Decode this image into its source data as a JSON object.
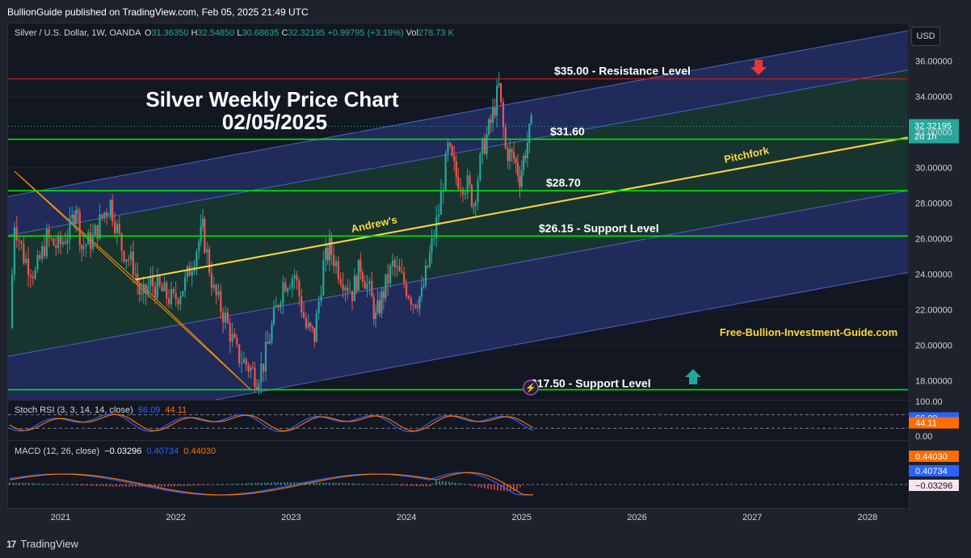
{
  "header": {
    "publisher_line": "BullionGuide published on TradingView.com, Feb 05, 2025 21:49 UTC"
  },
  "legend": {
    "symbol": "Silver / U.S. Dollar, 1W, OANDA",
    "o_label": "O",
    "o_value": "31.36350",
    "h_label": "H",
    "h_value": "32.54850",
    "l_label": "L",
    "l_value": "30.68635",
    "c_label": "C",
    "c_value": "32.32195",
    "change": "+0.99795 (+3.19%)",
    "vol_label": "Vol",
    "vol_value": "278.73 K"
  },
  "currency_button": "USD",
  "footer": {
    "brand": "TradingView",
    "logo": "17"
  },
  "overlays": {
    "title_line1": "Silver Weekly Price Chart",
    "title_line2": "02/05/2025",
    "website": "Free-Bullion-Investment-Guide.com",
    "pitchfork_label": "Pitchfork",
    "andrews_label": "Andrew's"
  },
  "colors": {
    "bull": "#26a69a",
    "bear": "#ef5350",
    "level_line": "#00e600",
    "resistance_line": "#b22222",
    "pitchfork_median": "#ffd740",
    "channel_blue": "#2b3d8a",
    "channel_green": "#1e4d3a",
    "stoch_k": "#2962ff",
    "stoch_d": "#ff6d00",
    "macd": "#2962ff",
    "signal": "#ff6d00"
  },
  "chart_data": {
    "type": "candlestick",
    "title": "Silver Weekly Price Chart",
    "subtitle": "02/05/2025",
    "x_ticks": [
      "2021",
      "2022",
      "2023",
      "2024",
      "2025",
      "2026",
      "2027",
      "2028"
    ],
    "y_ticks": [
      "36.00000",
      "34.00000",
      "32.00000",
      "30.00000",
      "28.00000",
      "26.00000",
      "24.00000",
      "22.00000",
      "20.00000",
      "18.00000"
    ],
    "ylim": [
      16.5,
      37.5
    ],
    "last_price_label": "32.32195",
    "last_price_value": 32.32195,
    "countdown": "2d 1h",
    "price_path": [
      {
        "x": 2020.58,
        "y": 21.0
      },
      {
        "x": 2020.62,
        "y": 27.0
      },
      {
        "x": 2020.7,
        "y": 25.0
      },
      {
        "x": 2020.8,
        "y": 24.0
      },
      {
        "x": 2020.9,
        "y": 26.0
      },
      {
        "x": 2021.0,
        "y": 25.5
      },
      {
        "x": 2021.1,
        "y": 26.5
      },
      {
        "x": 2021.15,
        "y": 28.0
      },
      {
        "x": 2021.2,
        "y": 25.5
      },
      {
        "x": 2021.3,
        "y": 26.0
      },
      {
        "x": 2021.4,
        "y": 27.5
      },
      {
        "x": 2021.45,
        "y": 28.0
      },
      {
        "x": 2021.55,
        "y": 25.5
      },
      {
        "x": 2021.65,
        "y": 24.5
      },
      {
        "x": 2021.72,
        "y": 22.5
      },
      {
        "x": 2021.8,
        "y": 23.5
      },
      {
        "x": 2021.9,
        "y": 23.0
      },
      {
        "x": 2022.0,
        "y": 22.5
      },
      {
        "x": 2022.1,
        "y": 23.5
      },
      {
        "x": 2022.2,
        "y": 25.5
      },
      {
        "x": 2022.25,
        "y": 26.5
      },
      {
        "x": 2022.35,
        "y": 23.0
      },
      {
        "x": 2022.45,
        "y": 21.5
      },
      {
        "x": 2022.55,
        "y": 19.5
      },
      {
        "x": 2022.65,
        "y": 18.8
      },
      {
        "x": 2022.72,
        "y": 18.2
      },
      {
        "x": 2022.78,
        "y": 19.0
      },
      {
        "x": 2022.85,
        "y": 21.0
      },
      {
        "x": 2022.95,
        "y": 23.5
      },
      {
        "x": 2023.05,
        "y": 24.0
      },
      {
        "x": 2023.15,
        "y": 21.0
      },
      {
        "x": 2023.22,
        "y": 20.5
      },
      {
        "x": 2023.3,
        "y": 24.5
      },
      {
        "x": 2023.35,
        "y": 25.5
      },
      {
        "x": 2023.45,
        "y": 24.0
      },
      {
        "x": 2023.55,
        "y": 23.0
      },
      {
        "x": 2023.62,
        "y": 24.5
      },
      {
        "x": 2023.7,
        "y": 23.0
      },
      {
        "x": 2023.75,
        "y": 21.5
      },
      {
        "x": 2023.82,
        "y": 23.0
      },
      {
        "x": 2023.9,
        "y": 24.5
      },
      {
        "x": 2024.0,
        "y": 23.5
      },
      {
        "x": 2024.08,
        "y": 22.5
      },
      {
        "x": 2024.15,
        "y": 22.8
      },
      {
        "x": 2024.22,
        "y": 25.0
      },
      {
        "x": 2024.3,
        "y": 27.5
      },
      {
        "x": 2024.38,
        "y": 31.0
      },
      {
        "x": 2024.45,
        "y": 29.5
      },
      {
        "x": 2024.55,
        "y": 29.0
      },
      {
        "x": 2024.6,
        "y": 28.0
      },
      {
        "x": 2024.68,
        "y": 31.0
      },
      {
        "x": 2024.75,
        "y": 32.5
      },
      {
        "x": 2024.82,
        "y": 34.5
      },
      {
        "x": 2024.88,
        "y": 31.0
      },
      {
        "x": 2024.95,
        "y": 30.5
      },
      {
        "x": 2025.0,
        "y": 29.5
      },
      {
        "x": 2025.05,
        "y": 31.0
      },
      {
        "x": 2025.1,
        "y": 32.3
      }
    ],
    "levels": [
      {
        "price": 35.0,
        "label": "$35.00 - Resistance Level",
        "kind": "resistance"
      },
      {
        "price": 31.6,
        "label": "$31.60",
        "kind": "level"
      },
      {
        "price": 28.7,
        "label": "$28.70",
        "kind": "level"
      },
      {
        "price": 26.15,
        "label": "$26.15 - Support Level",
        "kind": "support"
      },
      {
        "price": 17.5,
        "label": "$17.50  - Support Level",
        "kind": "support"
      }
    ],
    "pitchfork": {
      "median_start": {
        "x": 2021.65,
        "y": 23.7
      },
      "median_end": {
        "x": 2028.35,
        "y": 31.7
      }
    },
    "stoch_rsi": {
      "name": "Stoch RSI (3, 3, 14, 14, close)",
      "k_label": "66.09",
      "d_label": "44.11",
      "k": 66.09,
      "d": 44.11,
      "scale_labels": [
        "100.00",
        "0.00"
      ]
    },
    "macd": {
      "name": "MACD (12, 26, close)",
      "hist_label": "−0.03296",
      "macd_label": "0.40734",
      "signal_label": "0.44030",
      "hist": -0.03296,
      "macd": 0.40734,
      "signal": 0.4403
    }
  }
}
